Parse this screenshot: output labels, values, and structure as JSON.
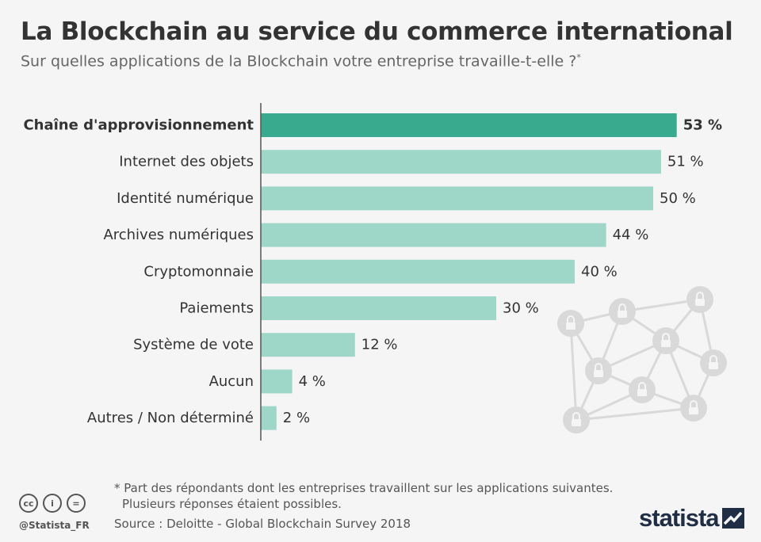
{
  "header": {
    "title": "La Blockchain au service du commerce international",
    "subtitle": "Sur quelles applications de la Blockchain votre entreprise travaille-t-elle ?",
    "subtitle_mark": "*"
  },
  "chart_data": {
    "type": "bar",
    "orientation": "horizontal",
    "categories": [
      "Chaîne d'approvisionnement",
      "Internet des objets",
      "Identité numérique",
      "Archives numériques",
      "Cryptomonnaie",
      "Paiements",
      "Système de vote",
      "Aucun",
      "Autres / Non déterminé"
    ],
    "values": [
      53,
      51,
      50,
      44,
      40,
      30,
      12,
      4,
      2
    ],
    "value_labels": [
      "53 %",
      "51 %",
      "50 %",
      "44 %",
      "40 %",
      "30 %",
      "12 %",
      "4 %",
      "2 %"
    ],
    "unit": "%",
    "highlight_index": 0,
    "colors": {
      "highlight": "#3aaa8f",
      "default": "#9ed6c8",
      "axis": "#555555",
      "network": "#d9d9d9"
    },
    "grid": false,
    "legend": "none"
  },
  "footer": {
    "note_line1": "* Part des répondants dont les entreprises travaillent sur les applications suivantes.",
    "note_line2": "Plusieurs réponses étaient possibles.",
    "source": "Source : Deloitte - Global Blockchain Survey 2018",
    "handle": "@Statista_FR",
    "brand": "statista",
    "license_icons": [
      "cc-icon",
      "attribution-icon",
      "no-derivatives-icon"
    ],
    "license_glyphs": [
      "cc",
      "i",
      "="
    ]
  }
}
